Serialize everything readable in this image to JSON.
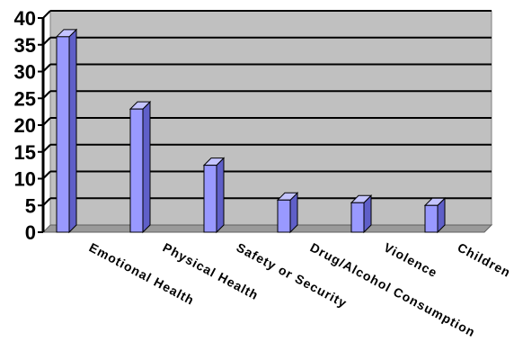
{
  "chart_data": {
    "type": "bar",
    "style": "3d-column",
    "categories": [
      "Emotional Health",
      "Physical Health",
      "Safety or Security",
      "Drug/Alcohol Consumption",
      "Violence",
      "Children"
    ],
    "values": [
      36.5,
      23,
      12.5,
      6,
      5.5,
      5
    ],
    "title": "",
    "xlabel": "",
    "ylabel": "",
    "ylim": [
      0,
      40
    ],
    "yticks": [
      0,
      5,
      10,
      15,
      20,
      25,
      30,
      35,
      40
    ],
    "grid": true,
    "legend": "none",
    "colors": {
      "bar_face": "#9999ff",
      "bar_side": "#5f5fc8",
      "bar_top": "#c4c4ff",
      "wall": "#c0c0c0",
      "floor": "#9a9a9a",
      "gridline": "#000000"
    }
  }
}
